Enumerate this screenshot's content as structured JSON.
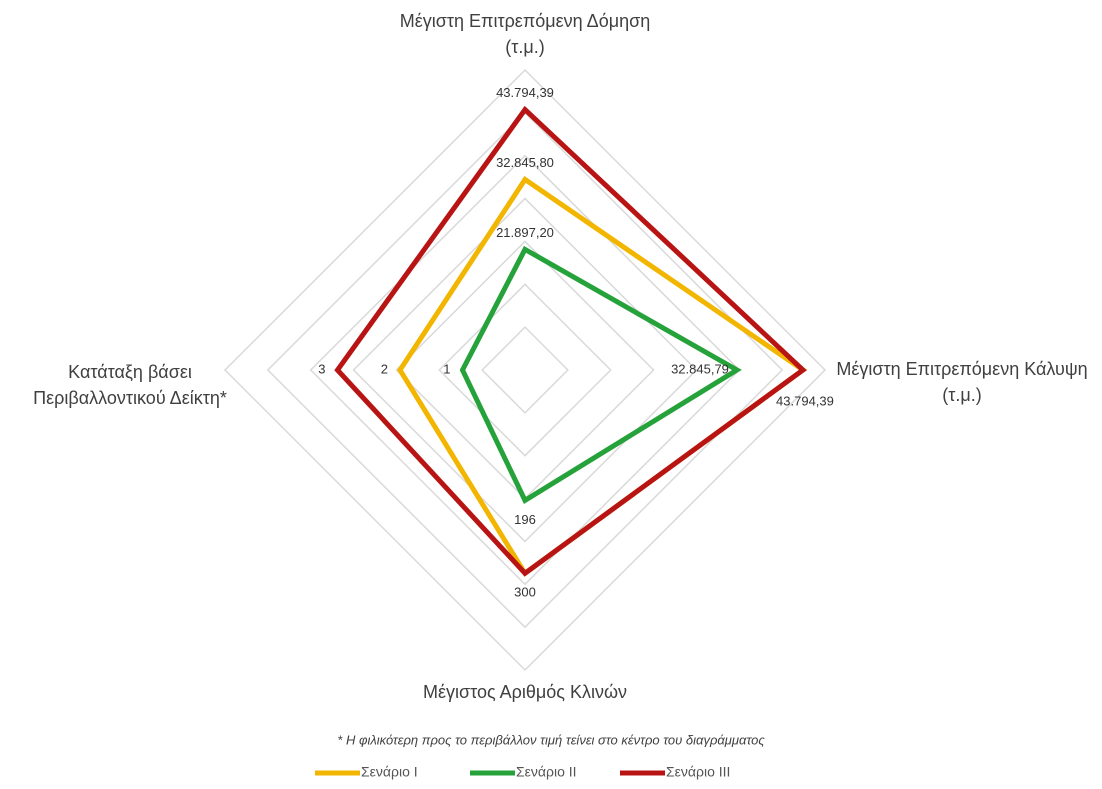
{
  "chart_data": {
    "type": "radar",
    "axes": [
      {
        "name": [
          "Μέγιστη Επιτρεπόμενη Δόμηση",
          "(τ.μ.)"
        ],
        "rlim": [
          3000,
          50000
        ]
      },
      {
        "name": [
          "Μέγιστη Επιτρεπόμενη Κάλυψη",
          "(τ.μ.)"
        ],
        "rlim": [
          -2300,
          47450
        ]
      },
      {
        "name": [
          "Μέγιστος Αριθμός Κλινών"
        ],
        "rlim": [
          10,
          438
        ]
      },
      {
        "name": [
          "Κατάταξη βάσει",
          "Περιβαλλοντικού Δείκτη*"
        ],
        "rlim": [
          0,
          4.8
        ]
      }
    ],
    "series": [
      {
        "name": "Σενάριο Ι",
        "color": "#f2b600",
        "values": [
          32845.8,
          43794.39,
          300,
          2
        ],
        "value_labels": [
          "32.845,80",
          null,
          null,
          "2"
        ]
      },
      {
        "name": "Σενάριο ΙΙ",
        "color": "#25a23a",
        "values": [
          21897.2,
          32845.79,
          196,
          1
        ],
        "value_labels": [
          "21.897,20",
          "32.845,79",
          "196",
          "1"
        ]
      },
      {
        "name": "Σενάριο ΙΙΙ",
        "color": "#b81414",
        "values": [
          43794.39,
          43794.39,
          300,
          3
        ],
        "value_labels": [
          "43.794,39",
          "43.794,39",
          "300",
          "3"
        ]
      }
    ],
    "footnote": "* Η φιλικότερη προς το περιβάλλον τιμή τείνει στο κέντρο του διαγράμματος",
    "grid": true,
    "legend": "bottom"
  }
}
